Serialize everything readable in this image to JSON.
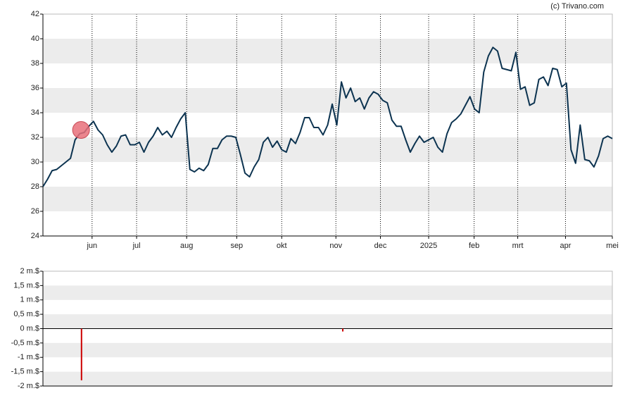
{
  "chart_data": [
    {
      "type": "line",
      "credit": "(c) Trivano.com",
      "color": "#0c3350",
      "values": [
        28.0,
        28.6,
        29.3,
        29.4,
        29.7,
        30.0,
        30.3,
        31.8,
        32.3,
        32.4,
        32.9,
        33.3,
        32.6,
        32.2,
        31.4,
        30.8,
        31.3,
        32.1,
        32.2,
        31.4,
        31.4,
        31.6,
        30.8,
        31.6,
        32.1,
        32.8,
        32.2,
        32.5,
        32.0,
        32.8,
        33.5,
        34.0,
        29.4,
        29.2,
        29.5,
        29.3,
        29.8,
        31.1,
        31.1,
        31.8,
        32.1,
        32.1,
        32.0,
        30.6,
        29.1,
        28.8,
        29.6,
        30.2,
        31.6,
        32.0,
        31.2,
        31.7,
        31.0,
        30.8,
        31.9,
        31.5,
        32.4,
        33.6,
        33.6,
        32.8,
        32.8,
        32.2,
        33.0,
        34.7,
        33.0,
        36.5,
        35.2,
        36.0,
        34.9,
        35.2,
        34.3,
        35.2,
        35.7,
        35.5,
        35.0,
        34.8,
        33.4,
        32.9,
        32.9,
        31.8,
        30.8,
        31.5,
        32.1,
        31.6,
        31.8,
        32.0,
        31.2,
        30.8,
        32.3,
        33.2,
        33.5,
        33.9,
        34.6,
        35.3,
        34.3,
        34.0,
        37.3,
        38.6,
        39.3,
        39.0,
        37.6,
        37.5,
        37.4,
        38.9,
        35.9,
        36.1,
        34.6,
        34.8,
        36.7,
        36.9,
        36.2,
        37.6,
        37.5,
        36.1,
        36.4,
        31.0,
        29.9,
        33.0,
        30.2,
        30.1,
        29.6,
        30.5,
        31.9,
        32.1,
        31.9
      ],
      "marker": {
        "x": 8.3,
        "value": 32.6,
        "color": "#e8707a"
      },
      "xlim": [
        0,
        124
      ],
      "xticks": [
        {
          "value": 10.7,
          "label": "jun"
        },
        {
          "value": 20.4,
          "label": "jul"
        },
        {
          "value": 31.3,
          "label": "aug"
        },
        {
          "value": 42.2,
          "label": "sep"
        },
        {
          "value": 52.0,
          "label": "okt"
        },
        {
          "value": 63.8,
          "label": "nov"
        },
        {
          "value": 73.5,
          "label": "dec"
        },
        {
          "value": 84.0,
          "label": "2025"
        },
        {
          "value": 93.9,
          "label": "feb"
        },
        {
          "value": 103.4,
          "label": "mrt"
        },
        {
          "value": 113.8,
          "label": "apr"
        },
        {
          "value": 124,
          "label": "mei"
        }
      ],
      "ylim": [
        24,
        42
      ],
      "yticks": [
        24,
        26,
        28,
        30,
        32,
        34,
        36,
        38,
        40,
        42
      ],
      "bands": true
    },
    {
      "type": "bar",
      "color": "#cc0000",
      "x": [
        8.4,
        65.3
      ],
      "values": [
        -1.8,
        -0.1
      ],
      "xlim": [
        0,
        124
      ],
      "ylim": [
        -2,
        2
      ],
      "yticks": [
        {
          "value": -2,
          "label": "-2 m.$"
        },
        {
          "value": -1.5,
          "label": "-1,5 m.$"
        },
        {
          "value": -1,
          "label": "-1 m.$"
        },
        {
          "value": -0.5,
          "label": "-0,5 m.$"
        },
        {
          "value": 0,
          "label": "0 m.$"
        },
        {
          "value": 0.5,
          "label": "0,5 m.$"
        },
        {
          "value": 1,
          "label": "1 m.$"
        },
        {
          "value": 1.5,
          "label": "1,5 m.$"
        },
        {
          "value": 2,
          "label": "2 m.$"
        }
      ],
      "bands": true
    }
  ]
}
